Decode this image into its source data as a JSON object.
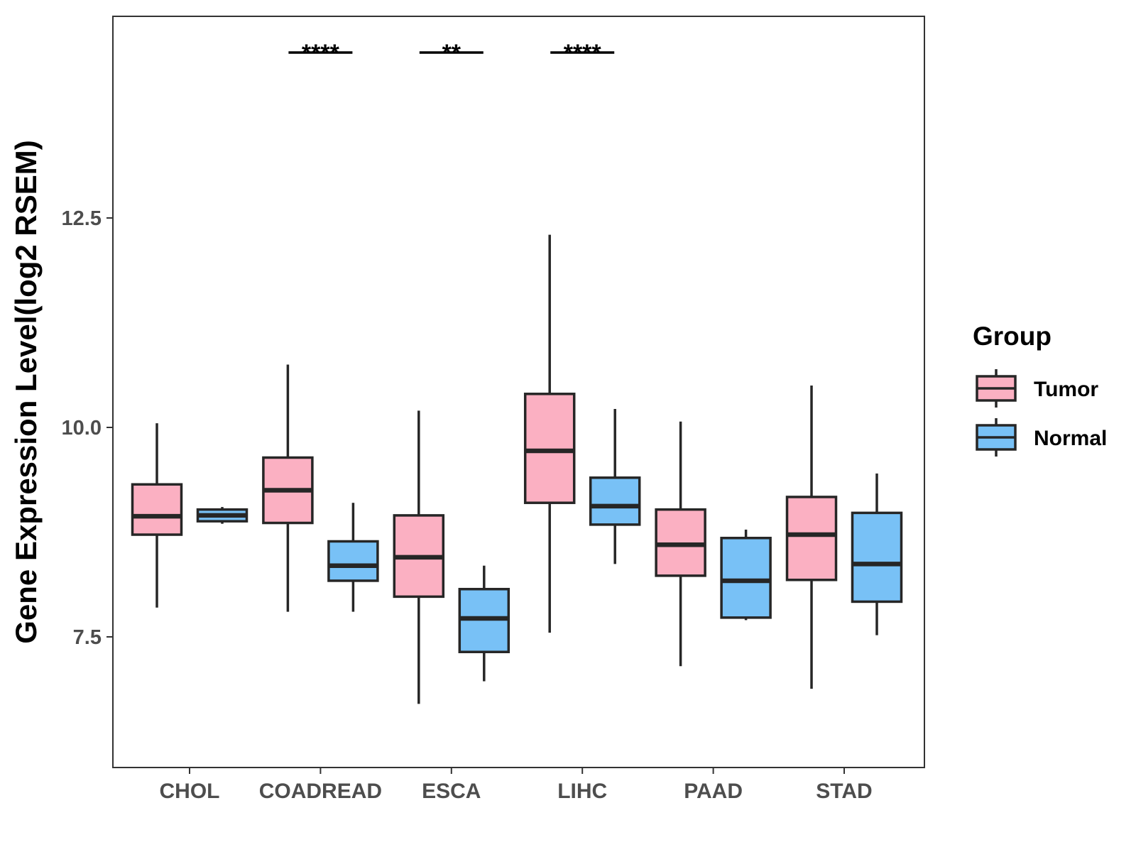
{
  "chart_data": {
    "type": "boxplot",
    "ylabel": "Gene Expression Level(log2 RSEM)",
    "xlabel": "",
    "ylim": [
      6.0,
      14.8
    ],
    "yticks": [
      7.5,
      10.0,
      12.5
    ],
    "ytick_labels": [
      "7.5",
      "10.0",
      "12.5"
    ],
    "categories": [
      "CHOL",
      "COADREAD",
      "ESCA",
      "LIHC",
      "PAAD",
      "STAD"
    ],
    "legend": {
      "title": "Group",
      "entries": [
        {
          "name": "Tumor",
          "color": "#FBB0C2"
        },
        {
          "name": "Normal",
          "color": "#78C1F6"
        }
      ]
    },
    "series": [
      {
        "name": "Tumor",
        "color": "#FBB0C2",
        "boxes": [
          {
            "category": "CHOL",
            "min": 7.85,
            "q1": 8.72,
            "median": 8.94,
            "q3": 9.32,
            "max": 10.05
          },
          {
            "category": "COADREAD",
            "min": 7.8,
            "q1": 8.86,
            "median": 9.25,
            "q3": 9.64,
            "max": 10.75
          },
          {
            "category": "ESCA",
            "min": 6.7,
            "q1": 7.98,
            "median": 8.45,
            "q3": 8.95,
            "max": 10.2
          },
          {
            "category": "LIHC",
            "min": 7.55,
            "q1": 9.1,
            "median": 9.72,
            "q3": 10.4,
            "max": 12.3
          },
          {
            "category": "PAAD",
            "min": 7.15,
            "q1": 8.23,
            "median": 8.6,
            "q3": 9.02,
            "max": 10.07
          },
          {
            "category": "STAD",
            "min": 6.88,
            "q1": 8.18,
            "median": 8.72,
            "q3": 9.17,
            "max": 10.5
          }
        ]
      },
      {
        "name": "Normal",
        "color": "#78C1F6",
        "boxes": [
          {
            "category": "CHOL",
            "min": 8.85,
            "q1": 8.88,
            "median": 8.95,
            "q3": 9.02,
            "max": 9.05
          },
          {
            "category": "COADREAD",
            "min": 7.8,
            "q1": 8.17,
            "median": 8.35,
            "q3": 8.64,
            "max": 9.1
          },
          {
            "category": "ESCA",
            "min": 6.97,
            "q1": 7.32,
            "median": 7.72,
            "q3": 8.07,
            "max": 8.35
          },
          {
            "category": "LIHC",
            "min": 8.37,
            "q1": 8.84,
            "median": 9.06,
            "q3": 9.4,
            "max": 10.22
          },
          {
            "category": "PAAD",
            "min": 7.7,
            "q1": 7.73,
            "median": 8.17,
            "q3": 8.68,
            "max": 8.78
          },
          {
            "category": "STAD",
            "min": 7.52,
            "q1": 7.92,
            "median": 8.37,
            "q3": 8.98,
            "max": 9.45
          }
        ]
      }
    ],
    "significance": [
      {
        "category": "COADREAD",
        "label": "****"
      },
      {
        "category": "ESCA",
        "label": "**"
      },
      {
        "category": "LIHC",
        "label": "****"
      }
    ]
  }
}
